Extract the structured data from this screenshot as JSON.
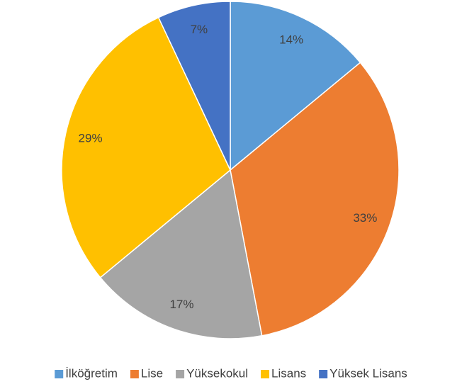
{
  "chart_data": {
    "type": "pie",
    "categories": [
      "İlköğretim",
      "Lise",
      "Yüksekokul",
      "Lisans",
      "Yüksek Lisans"
    ],
    "values": [
      14,
      33,
      17,
      29,
      7
    ],
    "value_labels": [
      "14%",
      "33%",
      "17%",
      "29%",
      "7%"
    ],
    "colors": [
      "#5b9bd5",
      "#ed7d31",
      "#a5a5a5",
      "#ffc000",
      "#4472c4"
    ],
    "legend": "bottom"
  }
}
